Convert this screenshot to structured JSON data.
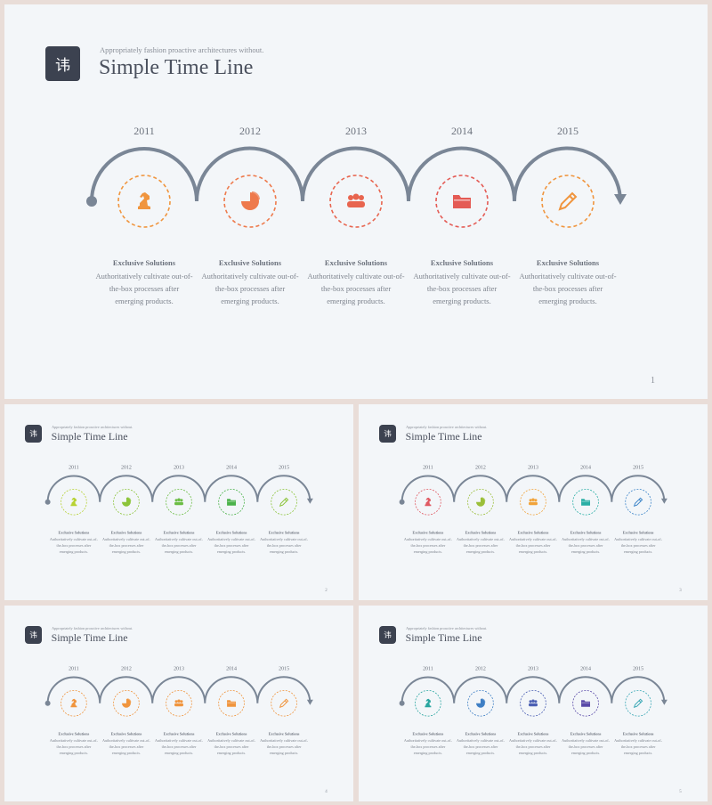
{
  "deck": {
    "title_icon_char": "讳",
    "subtitle": "Appropriately fashion proactive architectures without.",
    "title": "Simple Time Line"
  },
  "timeline": {
    "years": [
      "2011",
      "2012",
      "2013",
      "2014",
      "2015"
    ],
    "item_heading": "Exclusive Solutions",
    "item_lines": [
      "Authoritatively cultivate out-of-",
      "the-box processes after",
      "emerging products."
    ],
    "icons": [
      "chess-knight-icon",
      "pie-chart-icon",
      "group-icon",
      "folder-icon",
      "pencil-icon"
    ],
    "arc_color": "#7a8696"
  },
  "slides": [
    {
      "page": "1",
      "colors": [
        "#f0953e",
        "#ee7a4c",
        "#e8654f",
        "#e45b55",
        "#f0953e"
      ]
    },
    {
      "page": "2",
      "colors": [
        "#b7d233",
        "#8cc43a",
        "#6cbd45",
        "#4bb24a",
        "#8cc43a"
      ]
    },
    {
      "page": "3",
      "colors": [
        "#e05a63",
        "#9bbf3a",
        "#f1a33a",
        "#2aaea5",
        "#3f86c9"
      ]
    },
    {
      "page": "4",
      "colors": [
        "#f0953e",
        "#f0953e",
        "#f0953e",
        "#f0953e",
        "#f0953e"
      ]
    },
    {
      "page": "5",
      "colors": [
        "#2aa6a0",
        "#3f7fc4",
        "#4b5fb3",
        "#5a4aa8",
        "#3aa8b5"
      ]
    }
  ]
}
